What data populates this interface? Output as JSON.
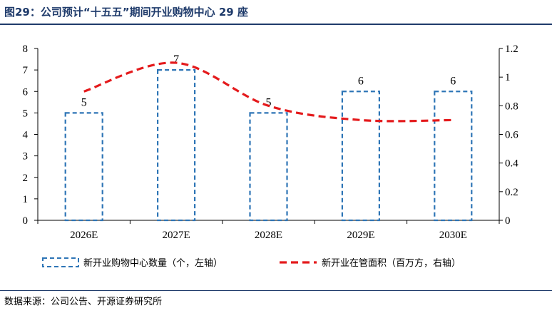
{
  "header": {
    "title": "图29：公司预计“十五五”期间开业购物中心 29 座"
  },
  "footer": {
    "source": "数据来源：公司公告、开源证券研究所"
  },
  "chart_data": {
    "type": "bar",
    "categories": [
      "2026E",
      "2027E",
      "2028E",
      "2029E",
      "2030E"
    ],
    "series": [
      {
        "name": "新开业购物中心数量（个，左轴）",
        "type": "bar",
        "axis": "left",
        "values": [
          5,
          7,
          5,
          6,
          6
        ],
        "data_labels": [
          "5",
          "7",
          "5",
          "6",
          "6"
        ],
        "color": "#2e75b6"
      },
      {
        "name": "新开业在管面积（百万方，右轴）",
        "type": "line",
        "axis": "right",
        "values": [
          0.9,
          1.1,
          0.8,
          0.7,
          0.7
        ],
        "color": "#e41a1c"
      }
    ],
    "y_left": {
      "ylim": [
        0,
        8
      ],
      "ticks": [
        "0",
        "1",
        "2",
        "3",
        "4",
        "5",
        "6",
        "7",
        "8"
      ]
    },
    "y_right": {
      "ylim": [
        0,
        1.2
      ],
      "ticks": [
        "0",
        "0.2",
        "0.4",
        "0.6",
        "0.8",
        "1",
        "1.2"
      ]
    },
    "legend_position": "bottom",
    "grid": false
  }
}
